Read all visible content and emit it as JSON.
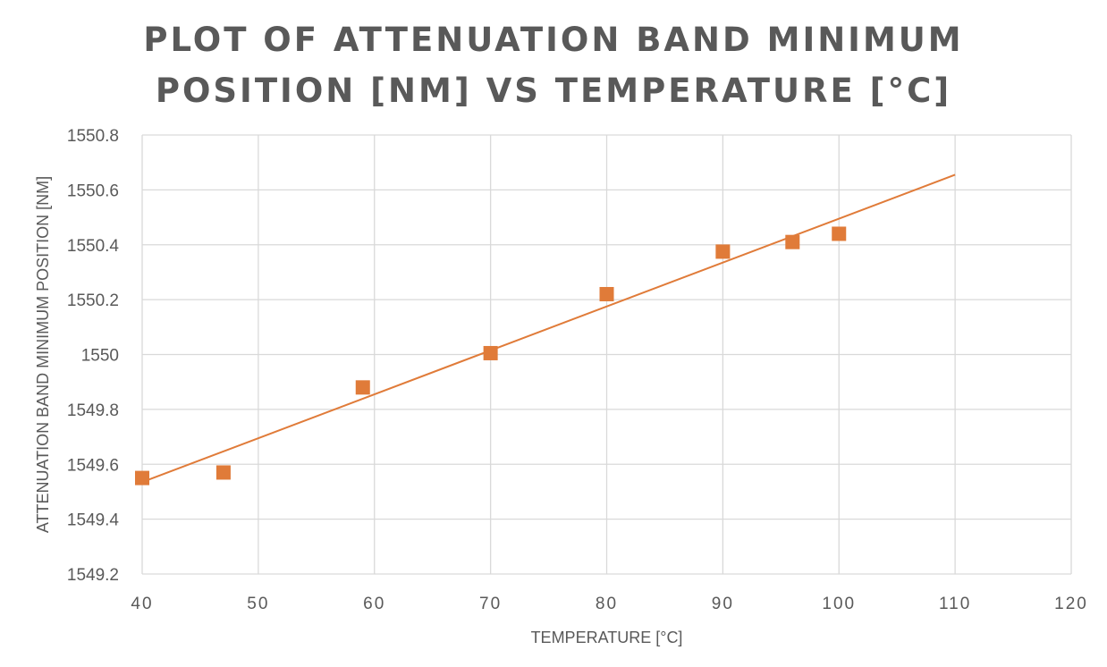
{
  "chart_data": {
    "type": "scatter",
    "title_lines": [
      "PLOT OF ATTENUATION BAND MINIMUM",
      "POSITION [NM] VS TEMPERATURE [°C]"
    ],
    "xlabel": "TEMPERATURE [°C]",
    "ylabel": "ATTENUATION BAND MINIMUM POSITION [NM]",
    "xlim": [
      40,
      120
    ],
    "ylim": [
      1549.2,
      1550.8
    ],
    "x_ticks": [
      40,
      50,
      60,
      70,
      80,
      90,
      100,
      110,
      120
    ],
    "y_ticks": [
      1549.2,
      1549.4,
      1549.6,
      1549.8,
      1550,
      1550.2,
      1550.4,
      1550.6,
      1550.8
    ],
    "grid": true,
    "marker": "square",
    "color": "#E07B39",
    "series": [
      {
        "x": [
          40,
          47,
          59,
          70,
          80,
          90,
          96,
          100
        ],
        "y": [
          1549.55,
          1549.57,
          1549.88,
          1550.005,
          1550.22,
          1550.375,
          1550.41,
          1550.44
        ]
      }
    ],
    "trendline": {
      "type": "linear",
      "x_range": [
        40,
        110
      ],
      "start_y": 1549.535,
      "end_y": 1550.655,
      "color": "#E07B39"
    }
  }
}
